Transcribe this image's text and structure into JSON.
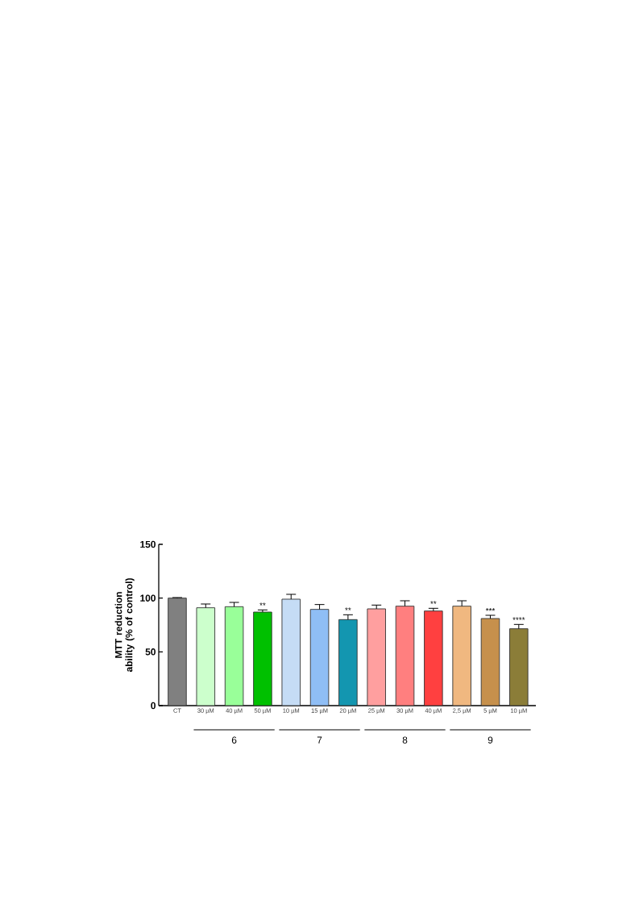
{
  "chart_data": {
    "type": "bar",
    "ylabel": "MTT reduction ability (% of control)",
    "categories": [
      "CT",
      "30 µM",
      "40 µM",
      "50 µM",
      "10 µM",
      "15 µM",
      "20 µM",
      "25 µM",
      "30 µM",
      "40 µM",
      "2,5 µM",
      "5 µM",
      "10 µM"
    ],
    "values": [
      100,
      91,
      92,
      87,
      99,
      89.5,
      80,
      90,
      92.5,
      88,
      92.5,
      81,
      71.5
    ],
    "errors": [
      0.5,
      3.5,
      4,
      2,
      4.5,
      4.5,
      4.5,
      3.5,
      5,
      2.5,
      5,
      3,
      4
    ],
    "colors": [
      "#808080",
      "#ccffcc",
      "#99ff99",
      "#00c000",
      "#c5dcf5",
      "#8fbef5",
      "#1396b0",
      "#ff9f9f",
      "#ff7f7f",
      "#ff4040",
      "#f0b880",
      "#c6904c",
      "#8b7d38"
    ],
    "value_labels": [
      null,
      null,
      null,
      "**",
      null,
      null,
      "**",
      null,
      null,
      "**",
      null,
      "***",
      "****"
    ],
    "ylim": [
      0,
      150
    ],
    "yticks": [
      0,
      50,
      100,
      150
    ],
    "grid": false,
    "annotations": [
      "6",
      "7",
      "8",
      "9"
    ]
  }
}
